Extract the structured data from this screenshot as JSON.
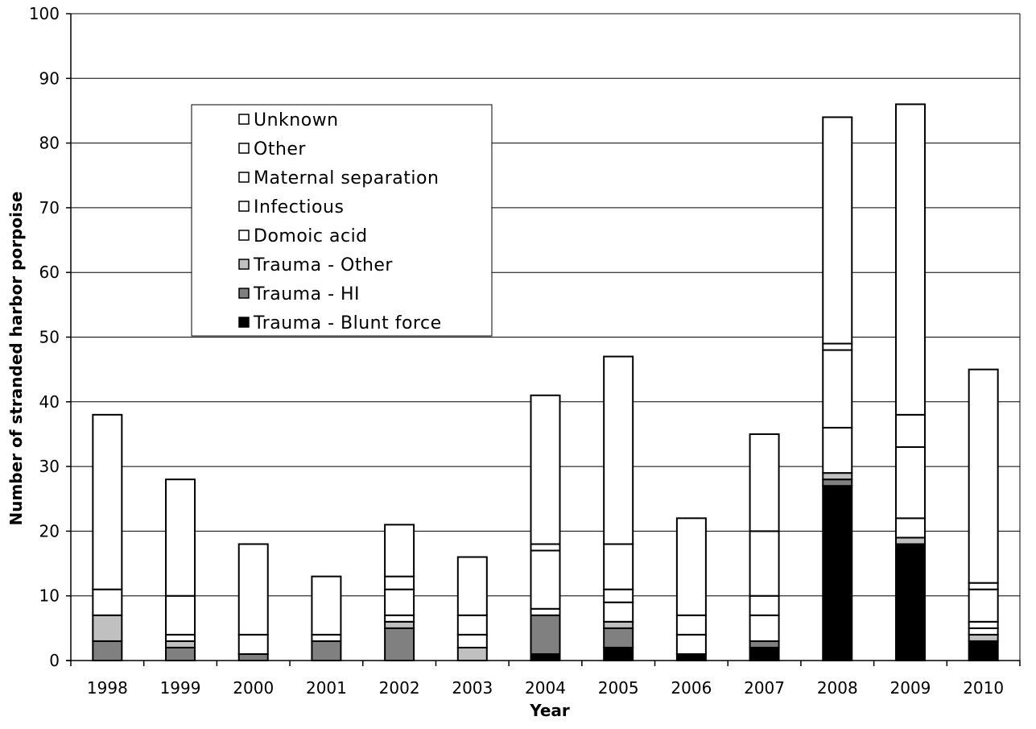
{
  "chart_data": {
    "type": "bar",
    "stacked": true,
    "title": "",
    "xlabel": "Year",
    "ylabel": "Number of stranded harbor porpoise",
    "ylim": [
      0,
      100
    ],
    "yticks": [
      0,
      10,
      20,
      30,
      40,
      50,
      60,
      70,
      80,
      90,
      100
    ],
    "grid": true,
    "legend_position": "upper-left",
    "categories": [
      "1998",
      "1999",
      "2000",
      "2001",
      "2002",
      "2003",
      "2004",
      "2005",
      "2006",
      "2007",
      "2008",
      "2009",
      "2010"
    ],
    "series": [
      {
        "name": "Trauma - Blunt force",
        "color": "#000000",
        "values": [
          0,
          0,
          0,
          0,
          0,
          0,
          1,
          2,
          1,
          2,
          27,
          18,
          3
        ]
      },
      {
        "name": "Trauma - HI",
        "color": "#808080",
        "values": [
          3,
          2,
          1,
          3,
          5,
          0,
          6,
          3,
          0,
          1,
          1,
          0,
          0
        ]
      },
      {
        "name": "Trauma - Other",
        "color": "#c0c0c0",
        "values": [
          4,
          1,
          0,
          0,
          1,
          2,
          0,
          1,
          0,
          0,
          1,
          1,
          1
        ]
      },
      {
        "name": "Domoic acid",
        "color": "#ffffff",
        "values": [
          0,
          0,
          0,
          0,
          0,
          0,
          0,
          0,
          0,
          0,
          0,
          0,
          1
        ]
      },
      {
        "name": "Infectious",
        "color": "#ffffff",
        "values": [
          0,
          1,
          3,
          1,
          1,
          2,
          1,
          3,
          3,
          4,
          7,
          3,
          1
        ]
      },
      {
        "name": "Maternal separation",
        "color": "#ffffff",
        "values": [
          4,
          6,
          0,
          0,
          4,
          3,
          9,
          2,
          3,
          3,
          12,
          11,
          5
        ]
      },
      {
        "name": "Other",
        "color": "#ffffff",
        "values": [
          0,
          0,
          0,
          0,
          2,
          0,
          1,
          7,
          0,
          10,
          1,
          5,
          1
        ]
      },
      {
        "name": "Unknown",
        "color": "#ffffff",
        "values": [
          27,
          18,
          14,
          9,
          8,
          9,
          23,
          29,
          15,
          15,
          35,
          48,
          33
        ]
      }
    ],
    "legend_order": [
      "Unknown",
      "Other",
      "Maternal separation",
      "Infectious",
      "Domoic acid",
      "Trauma - Other",
      "Trauma - HI",
      "Trauma - Blunt force"
    ]
  }
}
